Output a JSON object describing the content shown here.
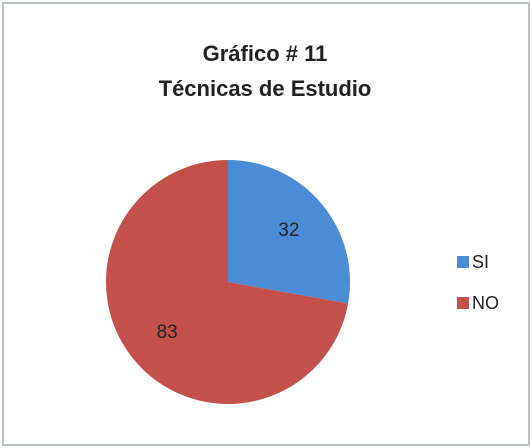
{
  "chart_data": {
    "type": "pie",
    "title": "Gráfico # 11",
    "subtitle": "Técnicas de Estudio",
    "categories": [
      "SI",
      "NO"
    ],
    "values": [
      32,
      83
    ],
    "colors": [
      "#4a8dd6",
      "#c4504c"
    ],
    "legend": "right"
  }
}
